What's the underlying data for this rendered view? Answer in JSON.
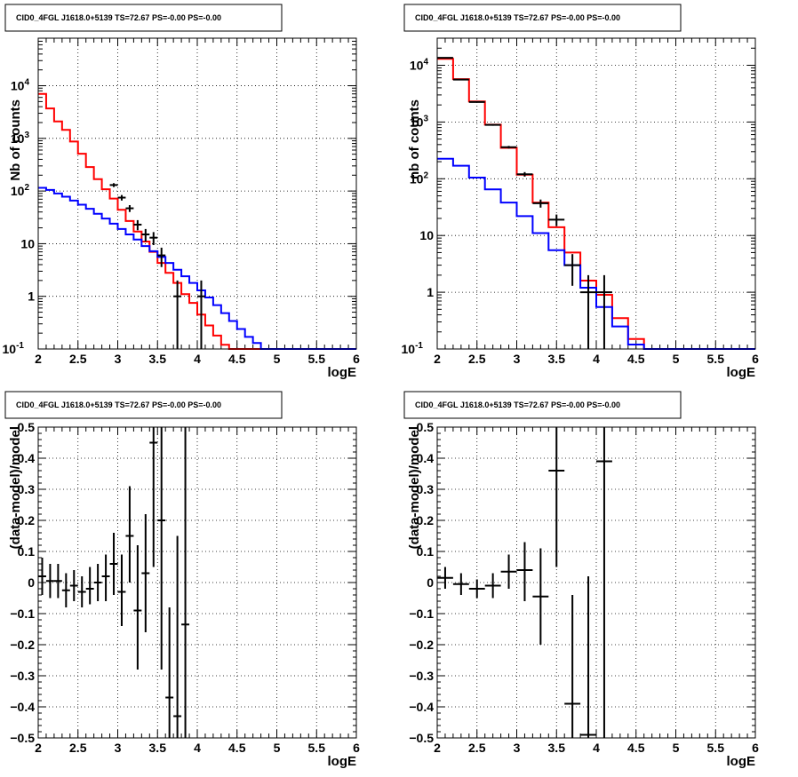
{
  "colors": {
    "data": "#000000",
    "total_model": "#ff0000",
    "source_model": "#0000ff",
    "grid": "#000000",
    "background": "#ffffff"
  },
  "panels": [
    {
      "title": "CID0_4FGL J1618.0+5139 TS=72.67 PS=-0.00 PS=-0.00",
      "chart_data": {
        "type": "histogram",
        "xlabel": "logE",
        "ylabel": "Nb of counts",
        "xlim": [
          2,
          6
        ],
        "ylim": [
          0.1,
          80000
        ],
        "yscale": "log",
        "grid": true,
        "xticks": [
          "2",
          "2.5",
          "3",
          "3.5",
          "4",
          "4.5",
          "5",
          "5.5",
          "6"
        ],
        "yticks": [
          {
            "v": 0.1,
            "label": "10",
            "sup": "-1"
          },
          {
            "v": 1,
            "label": "1",
            "sup": ""
          },
          {
            "v": 10,
            "label": "10",
            "sup": ""
          },
          {
            "v": 100,
            "label": "10",
            "sup": "2"
          },
          {
            "v": 1000,
            "label": "10",
            "sup": "3"
          },
          {
            "v": 10000,
            "label": "10",
            "sup": "4"
          }
        ],
        "bin_edges": [
          2.0,
          2.1,
          2.2,
          2.3,
          2.4,
          2.5,
          2.6,
          2.7,
          2.8,
          2.9,
          3.0,
          3.1,
          3.2,
          3.3,
          3.4,
          3.5,
          3.6,
          3.7,
          3.8,
          3.9,
          4.0,
          4.1,
          4.2,
          4.3,
          4.4,
          4.5,
          4.6,
          4.7,
          4.8,
          4.9,
          5.0,
          5.1,
          5.2,
          5.3,
          5.4,
          5.5,
          5.6,
          5.7,
          5.8,
          5.9,
          6.0
        ],
        "series": [
          {
            "key": "total_model",
            "style": "step",
            "values": [
              7000,
              3700,
              2100,
              1450,
              870,
              510,
              285,
              168,
              108,
              72,
              44,
              27,
              17,
              11,
              7,
              4.3,
              2.8,
              1.8,
              1.1,
              0.75,
              0.45,
              0.28,
              0.18,
              0.12,
              0.1,
              0.1,
              0.1,
              0.1,
              0.1,
              0.1,
              0.1,
              0.1,
              0.1,
              0.1,
              0.1,
              0.1,
              0.1,
              0.1,
              0.1,
              0.1
            ]
          },
          {
            "key": "source_model",
            "style": "step",
            "values": [
              115,
              105,
              90,
              78,
              66,
              55,
              46,
              37,
              30,
              24,
              19,
              15,
              12,
              9,
              7.2,
              5.6,
              4.3,
              3.2,
              2.4,
              1.8,
              1.3,
              0.95,
              0.68,
              0.48,
              0.34,
              0.24,
              0.17,
              0.13,
              0.1,
              0.1,
              0.1,
              0.1,
              0.1,
              0.1,
              0.1,
              0.1,
              0.1,
              0.1,
              0.1,
              0.1
            ]
          },
          {
            "key": "data",
            "style": "errorbar",
            "points": [
              {
                "x": 2.95,
                "y": 130,
                "lo": 119,
                "hi": 141
              },
              {
                "x": 3.05,
                "y": 75,
                "lo": 66,
                "hi": 84
              },
              {
                "x": 3.15,
                "y": 47,
                "lo": 40,
                "hi": 54
              },
              {
                "x": 3.25,
                "y": 23,
                "lo": 18,
                "hi": 28
              },
              {
                "x": 3.35,
                "y": 15,
                "lo": 11,
                "hi": 19
              },
              {
                "x": 3.45,
                "y": 13,
                "lo": 9.4,
                "hi": 16.6
              },
              {
                "x": 3.55,
                "y": 6,
                "lo": 3.6,
                "hi": 8.4
              },
              {
                "x": 3.75,
                "y": 1,
                "lo": 0.1,
                "hi": 2
              },
              {
                "x": 4.05,
                "y": 1,
                "lo": 0.1,
                "hi": 2
              }
            ]
          }
        ]
      }
    },
    {
      "title": "CID0_4FGL J1618.0+5139 TS=72.67 PS=-0.00 PS=-0.00",
      "chart_data": {
        "type": "histogram",
        "xlabel": "logE",
        "ylabel": "nb of counts",
        "xlim": [
          2,
          6
        ],
        "ylim": [
          0.1,
          30000
        ],
        "yscale": "log",
        "grid": true,
        "xticks": [
          "2",
          "2.5",
          "3",
          "3.5",
          "4",
          "4.5",
          "5",
          "5.5",
          "6"
        ],
        "yticks": [
          {
            "v": 0.1,
            "label": "10",
            "sup": "-1"
          },
          {
            "v": 1,
            "label": "1",
            "sup": ""
          },
          {
            "v": 10,
            "label": "10",
            "sup": ""
          },
          {
            "v": 100,
            "label": "10",
            "sup": "2"
          },
          {
            "v": 1000,
            "label": "10",
            "sup": "3"
          },
          {
            "v": 10000,
            "label": "10",
            "sup": "4"
          }
        ],
        "bin_edges": [
          2.0,
          2.2,
          2.4,
          2.6,
          2.8,
          3.0,
          3.2,
          3.4,
          3.6,
          3.8,
          4.0,
          4.2,
          4.4,
          4.6,
          4.8,
          5.0,
          5.2,
          5.4,
          5.6,
          5.8,
          6.0
        ],
        "series": [
          {
            "key": "total_model",
            "style": "step",
            "values": [
              13000,
              5700,
              2300,
              900,
              350,
              118,
              38,
              14,
              5,
              1.6,
              0.9,
              0.35,
              0.15,
              0.1,
              0.1,
              0.1,
              0.1,
              0.1,
              0.1,
              0.1
            ]
          },
          {
            "key": "source_model",
            "style": "step",
            "values": [
              225,
              170,
              105,
              65,
              38,
              22,
              11,
              5.5,
              3,
              1.2,
              0.55,
              0.25,
              0.12,
              0.1,
              0.1,
              0.1,
              0.1,
              0.1,
              0.1,
              0.1
            ]
          },
          {
            "key": "data",
            "style": "errorbar",
            "points": [
              {
                "x": 2.1,
                "y": 13500,
                "lo": 13380,
                "hi": 13620
              },
              {
                "x": 2.3,
                "y": 5600,
                "lo": 5525,
                "hi": 5675
              },
              {
                "x": 2.5,
                "y": 2250,
                "lo": 2200,
                "hi": 2300
              },
              {
                "x": 2.7,
                "y": 890,
                "lo": 860,
                "hi": 920
              },
              {
                "x": 2.9,
                "y": 360,
                "lo": 341,
                "hi": 379
              },
              {
                "x": 3.1,
                "y": 120,
                "lo": 109,
                "hi": 131
              },
              {
                "x": 3.3,
                "y": 37,
                "lo": 31,
                "hi": 43
              },
              {
                "x": 3.5,
                "y": 19,
                "lo": 14.6,
                "hi": 23.4
              },
              {
                "x": 3.7,
                "y": 3,
                "lo": 1.3,
                "hi": 4.7
              },
              {
                "x": 3.9,
                "y": 1,
                "lo": 0.1,
                "hi": 2
              },
              {
                "x": 4.1,
                "y": 1,
                "lo": 0.1,
                "hi": 2
              }
            ]
          }
        ]
      }
    },
    {
      "title": "CID0_4FGL J1618.0+5139 TS=72.67 PS=-0.00 PS=-0.00",
      "chart_data": {
        "type": "scatter",
        "xlabel": "logE",
        "ylabel": "(data-model)/model",
        "xlim": [
          2,
          6
        ],
        "ylim": [
          -0.5,
          0.5
        ],
        "yscale": "linear",
        "grid": true,
        "xticks": [
          "2",
          "2.5",
          "3",
          "3.5",
          "4",
          "4.5",
          "5",
          "5.5",
          "6"
        ],
        "yticks": [
          {
            "v": -0.5,
            "label": "−0.5",
            "sup": ""
          },
          {
            "v": -0.4,
            "label": "−0.4",
            "sup": ""
          },
          {
            "v": -0.3,
            "label": "−0.3",
            "sup": ""
          },
          {
            "v": -0.2,
            "label": "−0.2",
            "sup": ""
          },
          {
            "v": -0.1,
            "label": "−0.1",
            "sup": ""
          },
          {
            "v": 0,
            "label": "0",
            "sup": ""
          },
          {
            "v": 0.1,
            "label": "0.1",
            "sup": ""
          },
          {
            "v": 0.2,
            "label": "0.2",
            "sup": ""
          },
          {
            "v": 0.3,
            "label": "0.3",
            "sup": ""
          },
          {
            "v": 0.4,
            "label": "0.4",
            "sup": ""
          },
          {
            "v": 0.5,
            "label": "0.5",
            "sup": ""
          }
        ],
        "series": [
          {
            "key": "data",
            "style": "errorbar",
            "halfwidth": 0.05,
            "points": [
              {
                "x": 2.05,
                "y": 0.02,
                "lo": -0.04,
                "hi": 0.08
              },
              {
                "x": 2.15,
                "y": 0.005,
                "lo": -0.05,
                "hi": 0.06
              },
              {
                "x": 2.25,
                "y": 0.005,
                "lo": -0.05,
                "hi": 0.06
              },
              {
                "x": 2.35,
                "y": -0.025,
                "lo": -0.08,
                "hi": 0.03
              },
              {
                "x": 2.45,
                "y": -0.01,
                "lo": -0.06,
                "hi": 0.04
              },
              {
                "x": 2.55,
                "y": -0.03,
                "lo": -0.08,
                "hi": 0.02
              },
              {
                "x": 2.65,
                "y": -0.02,
                "lo": -0.07,
                "hi": 0.05
              },
              {
                "x": 2.75,
                "y": 0.0,
                "lo": -0.06,
                "hi": 0.06
              },
              {
                "x": 2.85,
                "y": 0.02,
                "lo": -0.06,
                "hi": 0.09
              },
              {
                "x": 2.95,
                "y": 0.06,
                "lo": -0.04,
                "hi": 0.16
              },
              {
                "x": 3.05,
                "y": -0.03,
                "lo": -0.14,
                "hi": 0.09
              },
              {
                "x": 3.15,
                "y": 0.15,
                "lo": 0.0,
                "hi": 0.31
              },
              {
                "x": 3.25,
                "y": -0.09,
                "lo": -0.28,
                "hi": 0.12
              },
              {
                "x": 3.35,
                "y": 0.03,
                "lo": -0.16,
                "hi": 0.22
              },
              {
                "x": 3.45,
                "y": 0.45,
                "lo": 0.05,
                "hi": 0.5
              },
              {
                "x": 3.55,
                "y": 0.2,
                "lo": -0.28,
                "hi": 0.5
              },
              {
                "x": 3.65,
                "y": -0.37,
                "lo": -0.5,
                "hi": -0.08
              },
              {
                "x": 3.75,
                "y": -0.43,
                "lo": -0.5,
                "hi": 0.15
              },
              {
                "x": 3.85,
                "y": -0.135,
                "lo": -0.5,
                "hi": 0.5
              }
            ]
          }
        ]
      }
    },
    {
      "title": "CID0_4FGL J1618.0+5139 TS=72.67 PS=-0.00 PS=-0.00",
      "chart_data": {
        "type": "scatter",
        "xlabel": "logE",
        "ylabel": "(data-model)/model",
        "xlim": [
          2,
          6
        ],
        "ylim": [
          -0.5,
          0.5
        ],
        "yscale": "linear",
        "grid": true,
        "xticks": [
          "2",
          "2.5",
          "3",
          "3.5",
          "4",
          "4.5",
          "5",
          "5.5",
          "6"
        ],
        "yticks": [
          {
            "v": -0.5,
            "label": "−0.5",
            "sup": ""
          },
          {
            "v": -0.4,
            "label": "−0.4",
            "sup": ""
          },
          {
            "v": -0.3,
            "label": "−0.3",
            "sup": ""
          },
          {
            "v": -0.2,
            "label": "−0.2",
            "sup": ""
          },
          {
            "v": -0.1,
            "label": "−0.1",
            "sup": ""
          },
          {
            "v": 0,
            "label": "0",
            "sup": ""
          },
          {
            "v": 0.1,
            "label": "0.1",
            "sup": ""
          },
          {
            "v": 0.2,
            "label": "0.2",
            "sup": ""
          },
          {
            "v": 0.3,
            "label": "0.3",
            "sup": ""
          },
          {
            "v": 0.4,
            "label": "0.4",
            "sup": ""
          },
          {
            "v": 0.5,
            "label": "0.5",
            "sup": ""
          }
        ],
        "series": [
          {
            "key": "data",
            "style": "errorbar",
            "halfwidth": 0.1,
            "points": [
              {
                "x": 2.1,
                "y": 0.015,
                "lo": -0.02,
                "hi": 0.05
              },
              {
                "x": 2.3,
                "y": -0.005,
                "lo": -0.04,
                "hi": 0.03
              },
              {
                "x": 2.5,
                "y": -0.02,
                "lo": -0.05,
                "hi": 0.01
              },
              {
                "x": 2.7,
                "y": -0.01,
                "lo": -0.05,
                "hi": 0.03
              },
              {
                "x": 2.9,
                "y": 0.035,
                "lo": -0.02,
                "hi": 0.09
              },
              {
                "x": 3.1,
                "y": 0.04,
                "lo": -0.06,
                "hi": 0.13
              },
              {
                "x": 3.3,
                "y": -0.045,
                "lo": -0.2,
                "hi": 0.11
              },
              {
                "x": 3.5,
                "y": 0.36,
                "lo": 0.05,
                "hi": 0.5
              },
              {
                "x": 3.7,
                "y": -0.39,
                "lo": -0.5,
                "hi": -0.04
              },
              {
                "x": 3.9,
                "y": -0.49,
                "lo": -0.5,
                "hi": 0.02
              },
              {
                "x": 4.1,
                "y": 0.39,
                "lo": -0.5,
                "hi": 0.5
              }
            ]
          }
        ]
      }
    }
  ]
}
